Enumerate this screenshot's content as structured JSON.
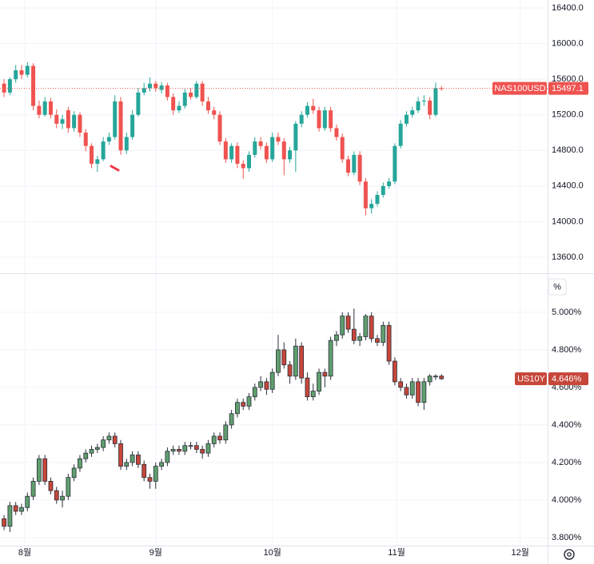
{
  "chart_data": [
    {
      "type": "candlestick",
      "name": "NAS100USD",
      "up_color": "#26a69a",
      "down_color": "#ef5350",
      "border_color": null,
      "price_line": true,
      "ylim": [
        13420,
        16490
      ],
      "yticks": [
        {
          "value": 13600,
          "label": "13600.0"
        },
        {
          "value": 14000,
          "label": "14000.0"
        },
        {
          "value": 14400,
          "label": "14400.0"
        },
        {
          "value": 14800,
          "label": "14800.0"
        },
        {
          "value": 15200,
          "label": "15200.0"
        },
        {
          "value": 15600,
          "label": "15600.0"
        },
        {
          "value": 16000,
          "label": "16000.0"
        },
        {
          "value": 16400,
          "label": "16400.0"
        }
      ],
      "ohlc": [
        [
          15550,
          15600,
          15400,
          15450
        ],
        [
          15450,
          15620,
          15420,
          15600
        ],
        [
          15600,
          15760,
          15560,
          15700
        ],
        [
          15700,
          15760,
          15600,
          15650
        ],
        [
          15650,
          15790,
          15620,
          15750
        ],
        [
          15750,
          15780,
          15250,
          15300
        ],
        [
          15300,
          15360,
          15160,
          15200
        ],
        [
          15200,
          15400,
          15180,
          15350
        ],
        [
          15350,
          15390,
          15160,
          15200
        ],
        [
          15200,
          15260,
          15050,
          15100
        ],
        [
          15100,
          15200,
          15040,
          15150
        ],
        [
          15250,
          15290,
          15000,
          15050
        ],
        [
          15050,
          15240,
          15010,
          15200
        ],
        [
          15200,
          15230,
          14950,
          15000
        ],
        [
          15000,
          15040,
          14790,
          14850
        ],
        [
          14850,
          14880,
          14600,
          14650
        ],
        [
          14650,
          14740,
          14560,
          14700
        ],
        [
          14700,
          14950,
          14680,
          14900
        ],
        [
          14900,
          15000,
          14860,
          14950
        ],
        [
          14950,
          15420,
          14920,
          15350
        ],
        [
          15350,
          15400,
          14750,
          14800
        ],
        [
          14800,
          15000,
          14760,
          14950
        ],
        [
          14950,
          15250,
          14920,
          15200
        ],
        [
          15200,
          15500,
          15180,
          15450
        ],
        [
          15450,
          15560,
          15420,
          15500
        ],
        [
          15500,
          15620,
          15460,
          15550
        ],
        [
          15550,
          15580,
          15460,
          15500
        ],
        [
          15480,
          15570,
          15440,
          15530
        ],
        [
          15530,
          15560,
          15360,
          15400
        ],
        [
          15400,
          15440,
          15200,
          15250
        ],
        [
          15250,
          15350,
          15220,
          15300
        ],
        [
          15300,
          15490,
          15270,
          15450
        ],
        [
          15450,
          15500,
          15370,
          15400
        ],
        [
          15400,
          15580,
          15380,
          15550
        ],
        [
          15550,
          15580,
          15300,
          15350
        ],
        [
          15350,
          15400,
          15210,
          15250
        ],
        [
          15250,
          15290,
          15150,
          15200
        ],
        [
          15200,
          15240,
          14860,
          14900
        ],
        [
          14900,
          14940,
          14660,
          14700
        ],
        [
          14700,
          14880,
          14660,
          14850
        ],
        [
          14850,
          14890,
          14600,
          14650
        ],
        [
          14650,
          14690,
          14480,
          14600
        ],
        [
          14600,
          14790,
          14560,
          14750
        ],
        [
          14750,
          14950,
          14720,
          14900
        ],
        [
          14900,
          14950,
          14810,
          14850
        ],
        [
          14850,
          14890,
          14660,
          14700
        ],
        [
          14700,
          15000,
          14670,
          14950
        ],
        [
          14950,
          15000,
          14860,
          14900
        ],
        [
          14900,
          14940,
          14520,
          14700
        ],
        [
          14700,
          14840,
          14660,
          14800
        ],
        [
          14800,
          15130,
          14560,
          15100
        ],
        [
          15100,
          15240,
          15060,
          15200
        ],
        [
          15200,
          15340,
          15170,
          15300
        ],
        [
          15300,
          15380,
          15210,
          15250
        ],
        [
          15250,
          15290,
          15010,
          15050
        ],
        [
          15050,
          15290,
          15020,
          15250
        ],
        [
          15250,
          15290,
          15010,
          15050
        ],
        [
          15050,
          15090,
          14910,
          14950
        ],
        [
          14950,
          14990,
          14660,
          14700
        ],
        [
          14700,
          14740,
          14510,
          14550
        ],
        [
          14550,
          14790,
          14520,
          14750
        ],
        [
          14750,
          14790,
          14410,
          14450
        ],
        [
          14450,
          14490,
          14070,
          14150
        ],
        [
          14150,
          14250,
          14090,
          14200
        ],
        [
          14200,
          14340,
          14170,
          14300
        ],
        [
          14300,
          14440,
          14270,
          14400
        ],
        [
          14400,
          14490,
          14370,
          14450
        ],
        [
          14450,
          14880,
          14420,
          14850
        ],
        [
          14850,
          15140,
          14820,
          15100
        ],
        [
          15100,
          15240,
          15070,
          15200
        ],
        [
          15200,
          15290,
          15170,
          15250
        ],
        [
          15250,
          15400,
          15220,
          15350
        ],
        [
          15350,
          15420,
          15300,
          15360
        ],
        [
          15360,
          15400,
          15150,
          15200
        ],
        [
          15200,
          15560,
          15180,
          15500
        ],
        [
          15500,
          15520,
          15470,
          15497.1
        ]
      ]
    },
    {
      "type": "candlestick",
      "name": "US10Y",
      "up_color": "#5f9f6e",
      "down_color": "#c6463a",
      "border_color": "#2a2e39",
      "price_line": false,
      "percent_button": "%",
      "last_label": "4.646%",
      "ylim": [
        3.757,
        5.204
      ],
      "yticks": [
        {
          "value": 3.8,
          "label": "3.800%"
        },
        {
          "value": 4.0,
          "label": "4.000%"
        },
        {
          "value": 4.2,
          "label": "4.200%"
        },
        {
          "value": 4.4,
          "label": "4.400%"
        },
        {
          "value": 4.6,
          "label": "4.600%"
        },
        {
          "value": 4.8,
          "label": "4.800%"
        },
        {
          "value": 5.0,
          "label": "5.000%"
        }
      ],
      "xlim": [
        -0.7,
        93.2
      ],
      "xticks": [
        {
          "value": 3.55,
          "label": "8월"
        },
        {
          "value": 26.0,
          "label": "9월"
        },
        {
          "value": 46.0,
          "label": "10월"
        },
        {
          "value": 67.3,
          "label": "11월"
        },
        {
          "value": 88.5,
          "label": "12월"
        }
      ],
      "ohlc": [
        [
          3.9,
          3.92,
          3.84,
          3.86
        ],
        [
          3.86,
          3.99,
          3.83,
          3.97
        ],
        [
          3.97,
          3.99,
          3.92,
          3.94
        ],
        [
          3.94,
          3.98,
          3.92,
          3.96
        ],
        [
          3.96,
          4.04,
          3.94,
          4.02
        ],
        [
          4.02,
          4.12,
          4.0,
          4.1
        ],
        [
          4.1,
          4.24,
          4.08,
          4.22
        ],
        [
          4.22,
          4.24,
          4.08,
          4.1
        ],
        [
          4.1,
          4.12,
          4.03,
          4.05
        ],
        [
          4.05,
          4.07,
          3.98,
          4.0
        ],
        [
          4.0,
          4.05,
          3.96,
          4.02
        ],
        [
          4.02,
          4.14,
          4.0,
          4.12
        ],
        [
          4.12,
          4.19,
          4.1,
          4.17
        ],
        [
          4.17,
          4.24,
          4.15,
          4.22
        ],
        [
          4.22,
          4.27,
          4.2,
          4.25
        ],
        [
          4.25,
          4.29,
          4.23,
          4.27
        ],
        [
          4.27,
          4.3,
          4.25,
          4.28
        ],
        [
          4.28,
          4.34,
          4.26,
          4.32
        ],
        [
          4.32,
          4.36,
          4.3,
          4.34
        ],
        [
          4.34,
          4.36,
          4.28,
          4.3
        ],
        [
          4.3,
          4.32,
          4.16,
          4.18
        ],
        [
          4.18,
          4.22,
          4.16,
          4.2
        ],
        [
          4.2,
          4.26,
          4.18,
          4.24
        ],
        [
          4.24,
          4.26,
          4.17,
          4.19
        ],
        [
          4.19,
          4.21,
          4.1,
          4.12
        ],
        [
          4.12,
          4.14,
          4.06,
          4.1
        ],
        [
          4.1,
          4.2,
          4.06,
          4.18
        ],
        [
          4.18,
          4.22,
          4.16,
          4.2
        ],
        [
          4.2,
          4.28,
          4.18,
          4.26
        ],
        [
          4.26,
          4.29,
          4.24,
          4.27
        ],
        [
          4.27,
          4.29,
          4.24,
          4.26
        ],
        [
          4.26,
          4.31,
          4.24,
          4.29
        ],
        [
          4.29,
          4.31,
          4.27,
          4.29
        ],
        [
          4.29,
          4.31,
          4.25,
          4.27
        ],
        [
          4.27,
          4.29,
          4.22,
          4.25
        ],
        [
          4.25,
          4.32,
          4.23,
          4.3
        ],
        [
          4.3,
          4.36,
          4.28,
          4.34
        ],
        [
          4.34,
          4.36,
          4.3,
          4.32
        ],
        [
          4.32,
          4.42,
          4.3,
          4.4
        ],
        [
          4.4,
          4.48,
          4.38,
          4.46
        ],
        [
          4.46,
          4.54,
          4.44,
          4.52
        ],
        [
          4.52,
          4.54,
          4.48,
          4.5
        ],
        [
          4.5,
          4.57,
          4.48,
          4.55
        ],
        [
          4.55,
          4.62,
          4.53,
          4.6
        ],
        [
          4.6,
          4.66,
          4.58,
          4.63
        ],
        [
          4.63,
          4.65,
          4.56,
          4.59
        ],
        [
          4.59,
          4.7,
          4.57,
          4.68
        ],
        [
          4.68,
          4.88,
          4.66,
          4.8
        ],
        [
          4.8,
          4.84,
          4.7,
          4.72
        ],
        [
          4.72,
          4.74,
          4.62,
          4.66
        ],
        [
          4.66,
          4.86,
          4.64,
          4.82
        ],
        [
          4.82,
          4.84,
          4.62,
          4.65
        ],
        [
          4.65,
          4.68,
          4.53,
          4.55
        ],
        [
          4.55,
          4.62,
          4.53,
          4.58
        ],
        [
          4.58,
          4.7,
          4.56,
          4.68
        ],
        [
          4.68,
          4.7,
          4.6,
          4.66
        ],
        [
          4.66,
          4.87,
          4.64,
          4.85
        ],
        [
          4.85,
          4.9,
          4.82,
          4.88
        ],
        [
          4.88,
          5.0,
          4.86,
          4.98
        ],
        [
          4.98,
          5.0,
          4.89,
          4.91
        ],
        [
          4.91,
          5.02,
          4.83,
          4.85
        ],
        [
          4.85,
          4.89,
          4.82,
          4.87
        ],
        [
          4.87,
          4.99,
          4.85,
          4.98
        ],
        [
          4.98,
          5.0,
          4.84,
          4.86
        ],
        [
          4.86,
          4.88,
          4.82,
          4.84
        ],
        [
          4.84,
          4.95,
          4.82,
          4.93
        ],
        [
          4.93,
          4.95,
          4.72,
          4.74
        ],
        [
          4.74,
          4.76,
          4.61,
          4.63
        ],
        [
          4.63,
          4.65,
          4.58,
          4.6
        ],
        [
          4.6,
          4.62,
          4.54,
          4.56
        ],
        [
          4.56,
          4.65,
          4.54,
          4.63
        ],
        [
          4.63,
          4.65,
          4.5,
          4.52
        ],
        [
          4.52,
          4.65,
          4.48,
          4.63
        ],
        [
          4.63,
          4.67,
          4.61,
          4.66
        ],
        [
          4.66,
          4.67,
          4.64,
          4.66
        ],
        [
          4.66,
          4.67,
          4.64,
          4.646
        ]
      ]
    }
  ]
}
